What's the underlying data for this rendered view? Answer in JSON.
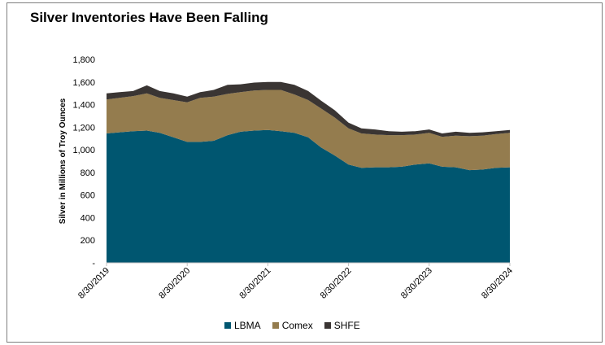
{
  "chart_data": {
    "type": "area",
    "stacked": true,
    "title": "Silver Inventories Have Been Falling",
    "xlabel": "",
    "ylabel": "Silver in Millions of Troy Ounces",
    "ylim": [
      0,
      1800
    ],
    "yticks": [
      0,
      200,
      400,
      600,
      800,
      1000,
      1200,
      1400,
      1600,
      1800
    ],
    "ytick_labels": [
      "-",
      "200",
      "400",
      "600",
      "800",
      "1,000",
      "1,200",
      "1,400",
      "1,600",
      "1,800"
    ],
    "xticks": [
      "8/30/2019",
      "8/30/2020",
      "8/30/2021",
      "8/30/2022",
      "8/30/2023",
      "8/30/2024"
    ],
    "x_start_year": 2019.67,
    "x_end_year": 2024.67,
    "legend_position": "bottom",
    "colors": {
      "LBMA": "#005670",
      "Comex": "#947c4e",
      "SHFE": "#3a3533"
    },
    "x": [
      2019.67,
      2019.83,
      2020.0,
      2020.17,
      2020.33,
      2020.5,
      2020.67,
      2020.83,
      2021.0,
      2021.17,
      2021.33,
      2021.5,
      2021.67,
      2021.83,
      2022.0,
      2022.17,
      2022.33,
      2022.5,
      2022.67,
      2022.83,
      2023.0,
      2023.17,
      2023.33,
      2023.5,
      2023.67,
      2023.83,
      2024.0,
      2024.17,
      2024.33,
      2024.5,
      2024.67
    ],
    "series": [
      {
        "name": "LBMA",
        "values": [
          1145,
          1155,
          1165,
          1170,
          1150,
          1110,
          1070,
          1070,
          1080,
          1130,
          1160,
          1170,
          1175,
          1165,
          1150,
          1110,
          1020,
          950,
          870,
          840,
          845,
          845,
          850,
          870,
          880,
          850,
          845,
          820,
          825,
          840,
          845
        ]
      },
      {
        "name": "Comex",
        "values": [
          300,
          305,
          310,
          330,
          310,
          330,
          350,
          390,
          390,
          365,
          350,
          355,
          355,
          365,
          340,
          330,
          345,
          335,
          320,
          305,
          290,
          285,
          280,
          265,
          270,
          265,
          280,
          300,
          300,
          300,
          305
        ]
      },
      {
        "name": "SHFE",
        "values": [
          55,
          50,
          45,
          70,
          60,
          60,
          50,
          50,
          60,
          80,
          70,
          70,
          70,
          70,
          85,
          80,
          70,
          65,
          50,
          45,
          45,
          35,
          30,
          30,
          30,
          30,
          35,
          30,
          30,
          25,
          25
        ]
      }
    ]
  }
}
